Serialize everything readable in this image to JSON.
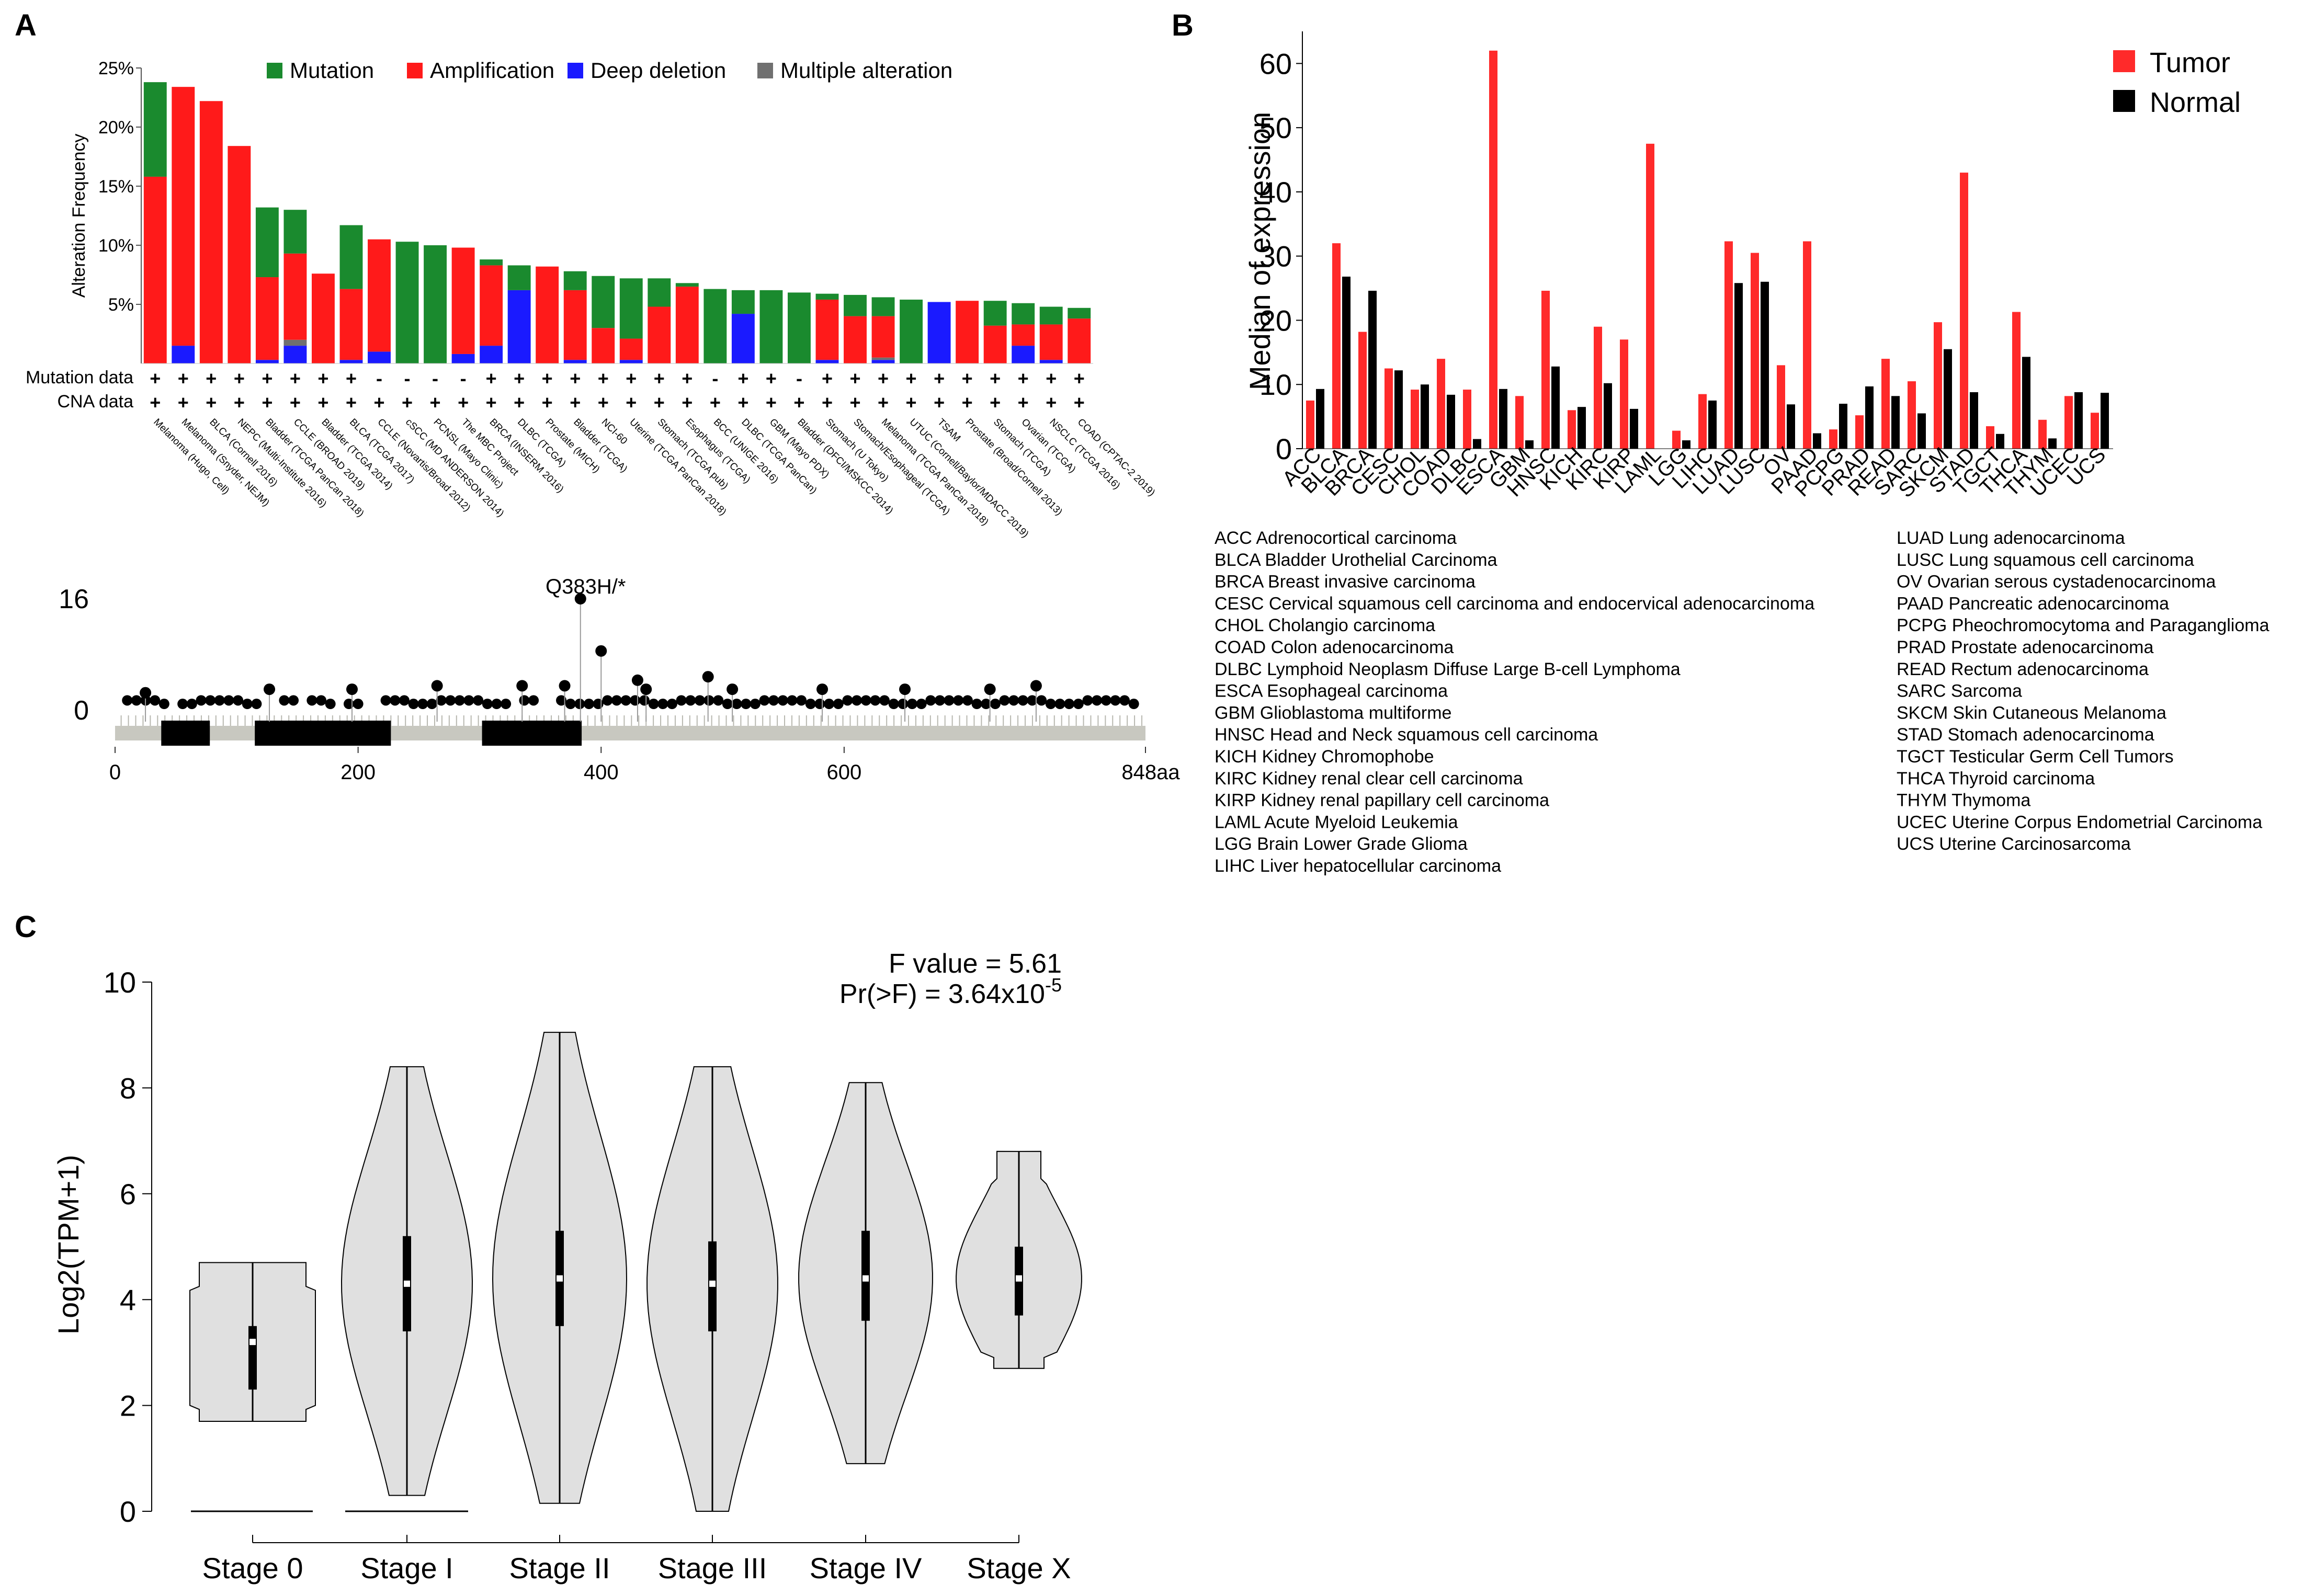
{
  "panel_labels": {
    "a": "A",
    "b": "B",
    "c": "C"
  },
  "colors": {
    "mutation": "#1a8a2e",
    "amplification": "#ff1a1a",
    "deep_deletion": "#1a1aff",
    "multiple": "#707070",
    "tumor": "#ff2a2a",
    "normal": "#000000",
    "violin_fill": "#e0e0e0",
    "lollipop_track": "#c8c8c0"
  },
  "chart_data": [
    {
      "id": "A_top",
      "type": "bar",
      "stacked": true,
      "ylabel": "Alteration Frequency",
      "ylim": [
        0,
        25
      ],
      "yticks": [
        "5%",
        "10%",
        "15%",
        "20%",
        "25%"
      ],
      "ytick_values": [
        5,
        10,
        15,
        20,
        25
      ],
      "legend": [
        "Mutation",
        "Amplification",
        "Deep deletion",
        "Multiple alteration"
      ],
      "row_labels": [
        "Mutation data",
        "CNA data"
      ],
      "categories": [
        "Melanoma (Hugo, Cell)",
        "Melanoma (Snyder, NEJM)",
        "BLCA (Cornell 2016)",
        "NEPC (Multi-Institute 2016)",
        "Bladder (TCGA PanCan 2018)",
        "CCLE (BROAD 2019)",
        "Bladder (TCGA 2014)",
        "BLCA (TCGA 2017)",
        "CCLE (Novartis/Broad 2012)",
        "cSCC (MD ANDERSON 2014)",
        "PCNSL (Mayo Clinic)",
        "The MBC Project",
        "BRCA (INSERM 2016)",
        "DLBC (TCGA)",
        "Prostate (MICH)",
        "Bladder (TCGA)",
        "NCI-60",
        "Uterine (TCGA PanCan 2018)",
        "Stomach (TCGA pub)",
        "Esophagus (TCGA)",
        "BCC (UNIGE 2016)",
        "DLBC (TCGA PanCan)",
        "GBM (Mayo PDX)",
        "Bladder (DFCI/MSKCC 2014)",
        "Stomach (U Tokyo)",
        "Stomach/Esophageal (TCGA)",
        "Melanoma (TCGA PanCan 2018)",
        "UTUC (Cornell/Baylor/MDACC 2019)",
        "TSAM",
        "Prostate (Broad/Cornell 2013)",
        "Stomach (TCGA)",
        "Ovarian (TCGA)",
        "NSCLC (TCGA 2016)",
        "COAD (CPTAC-2 2019)"
      ],
      "mutation_data": [
        "+",
        "+",
        "+",
        "+",
        "+",
        "+",
        "+",
        "+",
        "-",
        "-",
        "-",
        "-",
        "+",
        "+",
        "+",
        "+",
        "+",
        "+",
        "+",
        "+",
        "-",
        "+",
        "+",
        "-",
        "+",
        "+",
        "+",
        "+",
        "+",
        "+",
        "+",
        "+",
        "+",
        "+"
      ],
      "cna_data": [
        "+",
        "+",
        "+",
        "+",
        "+",
        "+",
        "+",
        "+",
        "+",
        "+",
        "+",
        "+",
        "+",
        "+",
        "+",
        "+",
        "+",
        "+",
        "+",
        "+",
        "+",
        "+",
        "+",
        "+",
        "+",
        "+",
        "+",
        "+",
        "+",
        "+",
        "+",
        "+",
        "+",
        "+"
      ],
      "series": [
        {
          "name": "Deep deletion",
          "values": [
            0,
            1.5,
            0,
            0,
            0.3,
            1.5,
            0,
            0.3,
            1.0,
            0,
            0,
            0.8,
            1.5,
            6.2,
            0,
            0.3,
            0,
            0.3,
            0,
            0,
            0,
            4.2,
            0,
            0,
            0.3,
            0,
            0.3,
            0,
            5.2,
            0,
            0,
            1.5,
            0.3,
            0
          ]
        },
        {
          "name": "Multiple alteration",
          "values": [
            0,
            0,
            0,
            0,
            0,
            0.5,
            0,
            0,
            0,
            0,
            0,
            0,
            0,
            0,
            0,
            0,
            0,
            0,
            0,
            0,
            0,
            0,
            0,
            0,
            0,
            0,
            0.2,
            0,
            0,
            0,
            0,
            0,
            0,
            0
          ]
        },
        {
          "name": "Amplification",
          "values": [
            15.8,
            21.9,
            22.2,
            18.4,
            7.0,
            7.3,
            7.6,
            6.0,
            9.5,
            0,
            0,
            9.0,
            6.8,
            0,
            8.2,
            5.9,
            3.0,
            1.8,
            4.8,
            6.5,
            0,
            0,
            0,
            0,
            5.1,
            4.0,
            3.5,
            0,
            0,
            5.3,
            3.2,
            1.8,
            3.0,
            3.8
          ]
        },
        {
          "name": "Mutation",
          "values": [
            8.0,
            0,
            0,
            0,
            5.9,
            3.7,
            0,
            5.4,
            0,
            10.3,
            10.0,
            0,
            0.5,
            2.1,
            0,
            1.6,
            4.4,
            5.1,
            2.4,
            0.3,
            6.3,
            2.0,
            6.2,
            6.0,
            0.5,
            1.8,
            1.6,
            5.4,
            0,
            0,
            2.1,
            1.8,
            1.5,
            0.9
          ]
        }
      ]
    },
    {
      "id": "A_bottom",
      "type": "scatter",
      "subtype": "lollipop",
      "ylim": [
        0,
        16
      ],
      "yticks": [
        "0",
        "16"
      ],
      "xlim": [
        0,
        848
      ],
      "xticks": [
        "0",
        "200",
        "400",
        "600",
        "848aa"
      ],
      "xtick_values": [
        0,
        200,
        400,
        600,
        848
      ],
      "annotation": "Q383H/*",
      "domains": [
        [
          38,
          78
        ],
        [
          115,
          227
        ],
        [
          302,
          384
        ]
      ],
      "points": [
        {
          "x": 383,
          "y": 16
        },
        {
          "x": 400,
          "y": 8.5
        },
        {
          "x": 430,
          "y": 4.3
        },
        {
          "x": 488,
          "y": 4.8
        },
        {
          "x": 758,
          "y": 3.5
        },
        {
          "x": 370,
          "y": 3.5
        },
        {
          "x": 127,
          "y": 3.0
        },
        {
          "x": 195,
          "y": 3.0
        },
        {
          "x": 265,
          "y": 3.5
        },
        {
          "x": 335,
          "y": 3.5
        },
        {
          "x": 437,
          "y": 3.0
        },
        {
          "x": 508,
          "y": 3.0
        },
        {
          "x": 582,
          "y": 3.0
        },
        {
          "x": 650,
          "y": 3.0
        },
        {
          "x": 720,
          "y": 3.0
        },
        {
          "x": 25,
          "y": 2.5
        }
      ]
    },
    {
      "id": "B",
      "type": "bar",
      "ylabel": "Median of expression",
      "ylim": [
        0,
        65
      ],
      "yticks": [
        "0",
        "10",
        "20",
        "30",
        "40",
        "50",
        "60"
      ],
      "ytick_values": [
        0,
        10,
        20,
        30,
        40,
        50,
        60
      ],
      "legend": [
        "Tumor",
        "Normal"
      ],
      "categories": [
        "ACC",
        "BLCA",
        "BRCA",
        "CESC",
        "CHOL",
        "COAD",
        "DLBC",
        "ESCA",
        "GBM",
        "HNSC",
        "KICH",
        "KIRC",
        "KIRP",
        "LAML",
        "LGG",
        "LIHC",
        "LUAD",
        "LUSC",
        "OV",
        "PAAD",
        "PCPG",
        "PRAD",
        "READ",
        "SARC",
        "SKCM",
        "STAD",
        "TGCT",
        "THCA",
        "THYM",
        "UCEC",
        "UCS"
      ],
      "series": [
        {
          "name": "Tumor",
          "values": [
            7.5,
            32.0,
            18.2,
            12.5,
            9.2,
            14.0,
            9.2,
            62.0,
            8.2,
            24.6,
            6.0,
            19.0,
            17.0,
            47.5,
            2.8,
            8.5,
            32.3,
            30.5,
            13.0,
            32.3,
            3.0,
            5.2,
            14.0,
            10.5,
            19.7,
            43.0,
            3.5,
            21.3,
            4.5,
            8.2,
            5.6
          ]
        },
        {
          "name": "Normal",
          "values": [
            9.3,
            26.8,
            24.6,
            12.2,
            10.0,
            8.4,
            1.5,
            9.3,
            1.3,
            12.8,
            6.5,
            10.2,
            6.2,
            0,
            1.3,
            7.5,
            25.8,
            26.0,
            6.9,
            2.4,
            7.0,
            9.7,
            8.2,
            5.5,
            15.5,
            8.8,
            2.3,
            14.3,
            1.6,
            8.8,
            8.7
          ]
        }
      ]
    },
    {
      "id": "C",
      "type": "violin",
      "ylabel": "Log2(TPM+1)",
      "ylim": [
        0,
        10
      ],
      "yticks": [
        "0",
        "2",
        "4",
        "6",
        "8",
        "10"
      ],
      "ytick_values": [
        0,
        2,
        4,
        6,
        8,
        10
      ],
      "categories": [
        "Stage 0",
        "Stage I",
        "Stage II",
        "Stage III",
        "Stage IV",
        "Stage X"
      ],
      "stats_line1": "F value = 5.61",
      "stats_line2_prefix": "Pr(>F) = 3.64x10",
      "stats_line2_exp": "-5",
      "groups": [
        {
          "min": 1.7,
          "max": 4.7,
          "q1": 2.3,
          "median": 3.2,
          "q3": 3.5
        },
        {
          "min": 0.3,
          "max": 8.4,
          "q1": 3.4,
          "median": 4.3,
          "q3": 5.2
        },
        {
          "min": 0.15,
          "max": 9.05,
          "q1": 3.5,
          "median": 4.4,
          "q3": 5.3
        },
        {
          "min": 0,
          "max": 8.4,
          "q1": 3.4,
          "median": 4.3,
          "q3": 5.1
        },
        {
          "min": 0.9,
          "max": 8.1,
          "q1": 3.6,
          "median": 4.4,
          "q3": 5.3
        },
        {
          "min": 2.7,
          "max": 6.8,
          "q1": 3.7,
          "median": 4.4,
          "q3": 5.0
        }
      ]
    }
  ],
  "legend_b_abbrev": [
    {
      "left": "ACC Adrenocortical carcinoma",
      "right": "LUAD Lung adenocarcinoma"
    },
    {
      "left": "BLCA Bladder Urothelial Carcinoma",
      "right": "LUSC Lung squamous cell carcinoma"
    },
    {
      "left": "BRCA Breast invasive carcinoma",
      "right": "OV Ovarian serous cystadenocarcinoma"
    },
    {
      "left": "CESC Cervical squamous cell carcinoma and endocervical adenocarcinoma",
      "right": "PAAD Pancreatic adenocarcinoma"
    },
    {
      "left": "CHOL Cholangio carcinoma",
      "right": "PCPG Pheochromocytoma and Paraganglioma"
    },
    {
      "left": "COAD Colon adenocarcinoma",
      "right": "PRAD Prostate adenocarcinoma"
    },
    {
      "left": "DLBC Lymphoid Neoplasm Diffuse Large B-cell Lymphoma",
      "right": "READ Rectum adenocarcinoma"
    },
    {
      "left": "ESCA Esophageal carcinoma",
      "right": "SARC Sarcoma"
    },
    {
      "left": "GBM  Glioblastoma multiforme",
      "right": "SKCM Skin Cutaneous Melanoma"
    },
    {
      "left": "HNSC Head and Neck squamous cell carcinoma",
      "right": "STAD Stomach adenocarcinoma"
    },
    {
      "left": "KICH Kidney Chromophobe",
      "right": "TGCT Testicular Germ Cell Tumors"
    },
    {
      "left": "KIRC Kidney renal clear cell carcinoma",
      "right": "THCA Thyroid carcinoma"
    },
    {
      "left": "KIRP Kidney renal papillary cell carcinoma",
      "right": "THYM Thymoma"
    },
    {
      "left": "LAML Acute Myeloid Leukemia",
      "right": "UCEC Uterine Corpus Endometrial Carcinoma"
    },
    {
      "left": "LGG Brain Lower Grade Glioma",
      "right": "UCS Uterine Carcinosarcoma"
    },
    {
      "left": "LIHC Liver hepatocellular carcinoma",
      "right": ""
    }
  ]
}
